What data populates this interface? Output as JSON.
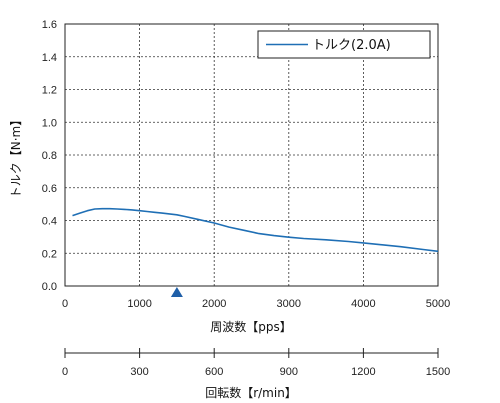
{
  "chart_data": {
    "type": "line",
    "ylabel": "トルク【N·m】",
    "xlabel": "周波数【pps】",
    "x2label": "回転数【r/min】",
    "xlim": [
      0,
      5000
    ],
    "ylim": [
      0,
      1.6
    ],
    "xticks": [
      "0",
      "1000",
      "2000",
      "3000",
      "4000",
      "5000"
    ],
    "yticks": [
      "0.0",
      "0.2",
      "0.4",
      "0.6",
      "0.8",
      "1.0",
      "1.2",
      "1.4",
      "1.6"
    ],
    "x2lim": [
      0,
      1500
    ],
    "x2ticks": [
      "0",
      "300",
      "600",
      "900",
      "1200",
      "1500"
    ],
    "grid": true,
    "legend_position": "top-right",
    "marker": {
      "x": 1500,
      "shape": "triangle",
      "color": "#1f5fa8"
    },
    "series": [
      {
        "name": "トルク(2.0A)",
        "color": "#1f6fb5",
        "x": [
          100,
          200,
          300,
          400,
          500,
          600,
          700,
          800,
          900,
          1000,
          1100,
          1200,
          1300,
          1400,
          1500,
          1600,
          1800,
          2000,
          2200,
          2400,
          2600,
          2800,
          3000,
          3200,
          3500,
          3800,
          4000,
          4200,
          4500,
          4800,
          5000
        ],
        "y": [
          0.43,
          0.445,
          0.46,
          0.47,
          0.472,
          0.472,
          0.47,
          0.468,
          0.465,
          0.46,
          0.455,
          0.45,
          0.445,
          0.44,
          0.435,
          0.425,
          0.405,
          0.385,
          0.36,
          0.34,
          0.32,
          0.308,
          0.298,
          0.29,
          0.282,
          0.272,
          0.263,
          0.254,
          0.24,
          0.223,
          0.212
        ]
      }
    ]
  }
}
